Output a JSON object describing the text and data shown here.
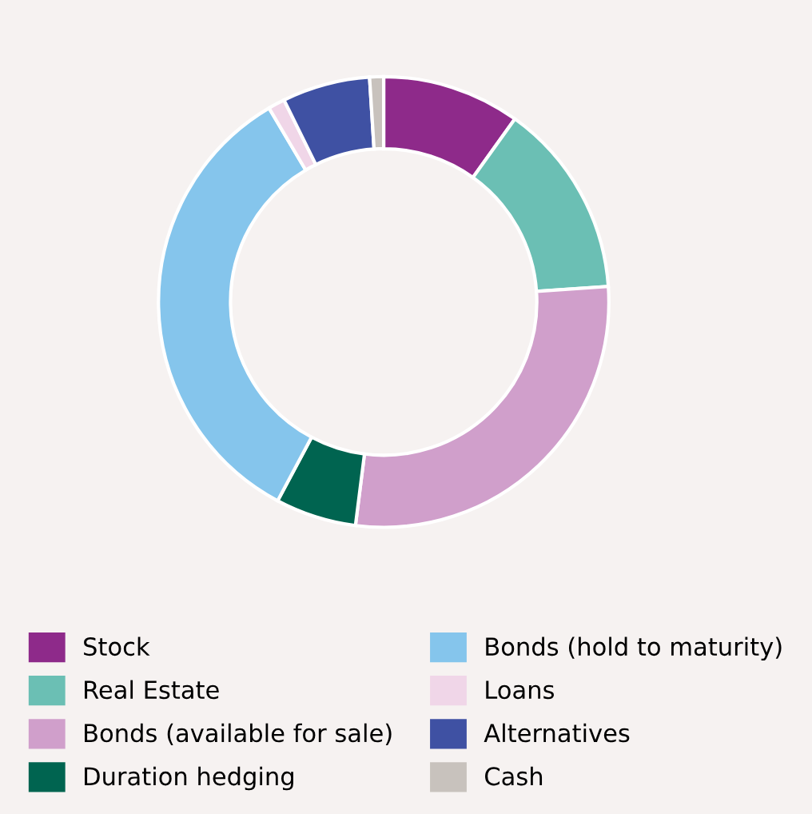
{
  "chart_data": {
    "type": "donut",
    "categories": [
      "Stock",
      "Real Estate",
      "Bonds (available for sale)",
      "Duration hedging",
      "Bonds (hold to maturity)",
      "Loans",
      "Alternatives",
      "Cash"
    ],
    "values": [
      9.9,
      14.0,
      28.1,
      5.8,
      33.7,
      1.2,
      6.3,
      1.0
    ],
    "colors": [
      "#8e2a8a",
      "#6bbfb4",
      "#d09fcb",
      "#006450",
      "#85c5ec",
      "#f0d6e8",
      "#3f51a3",
      "#c8c2bd"
    ],
    "legend": "bottom"
  }
}
